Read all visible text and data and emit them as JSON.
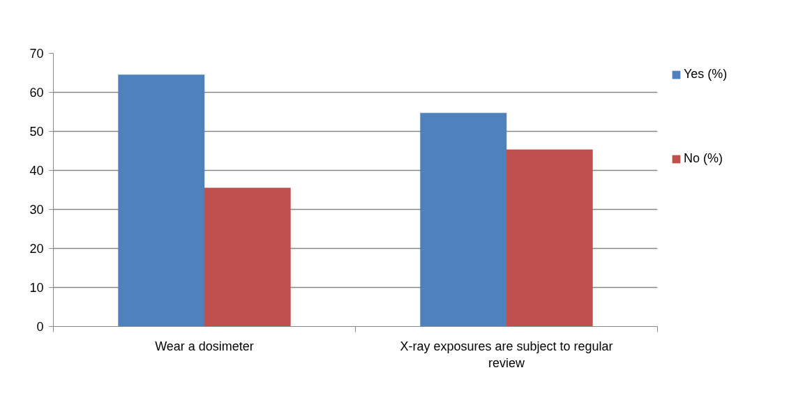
{
  "chart_data": {
    "type": "bar",
    "categories": [
      "Wear a dosimeter",
      "X-ray exposures are subject to regular review"
    ],
    "series": [
      {
        "name": "Yes (%)",
        "color": "#4f81bd",
        "values": [
          64.5,
          54.7
        ]
      },
      {
        "name": "No (%)",
        "color": "#c0504d",
        "values": [
          35.5,
          45.3
        ]
      }
    ],
    "ylim": [
      0,
      70
    ],
    "yticks": [
      0,
      10,
      20,
      30,
      40,
      50,
      60,
      70
    ],
    "grid": "y",
    "legend": "right"
  }
}
